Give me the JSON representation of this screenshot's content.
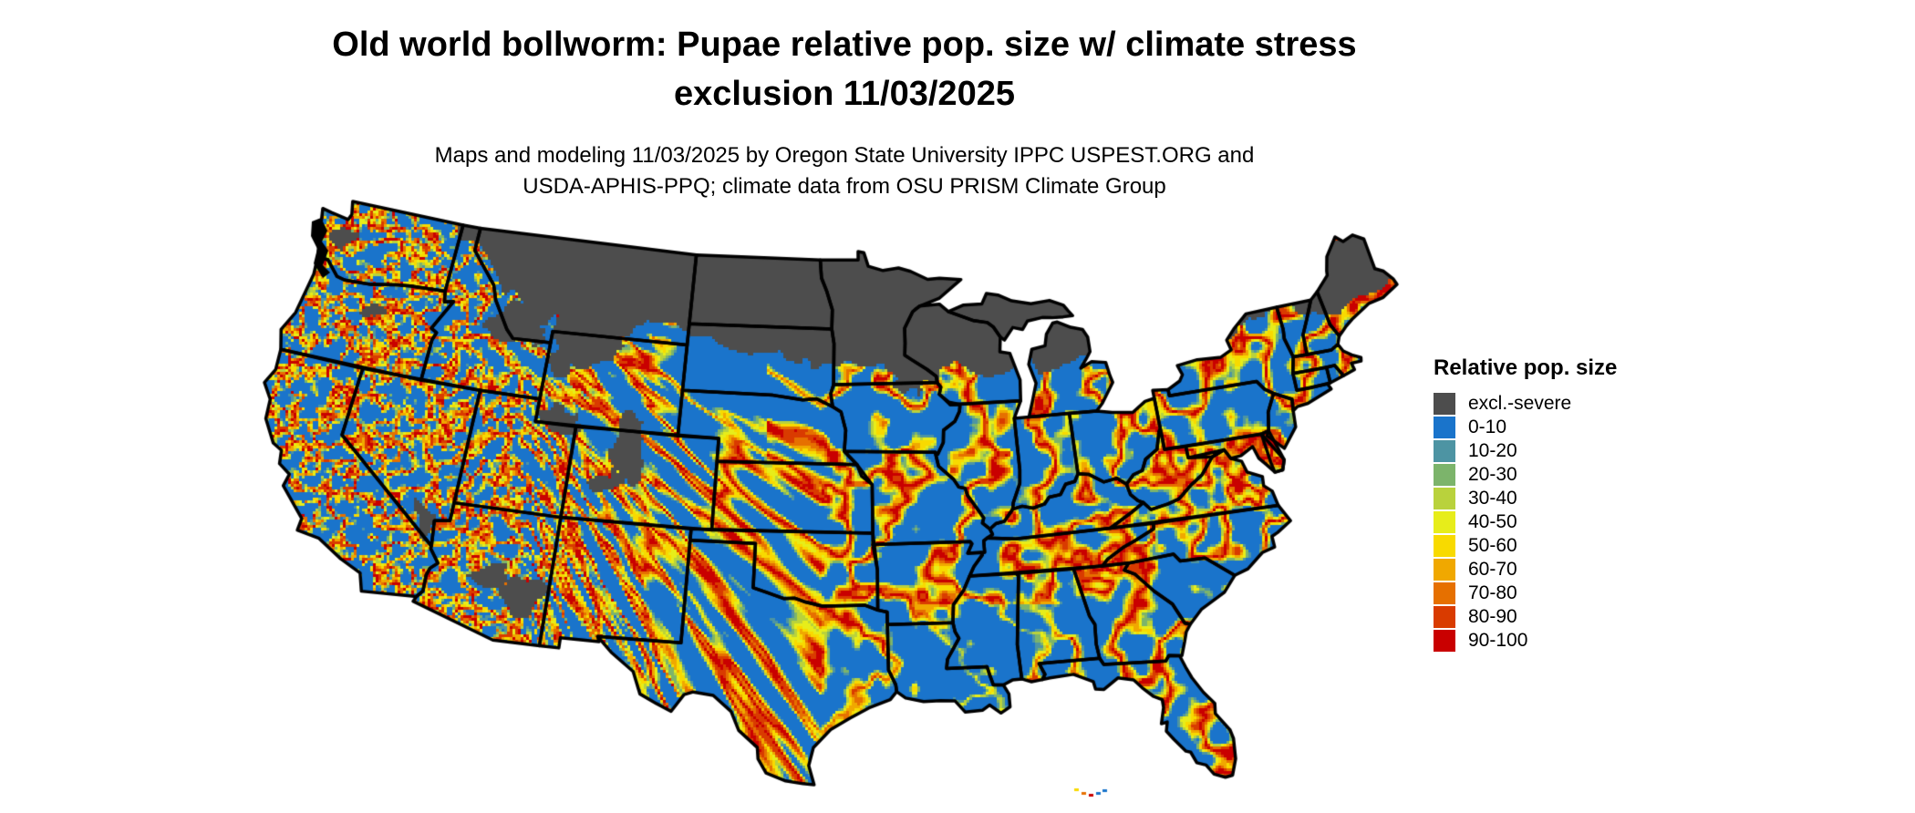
{
  "header": {
    "title_line1": "Old world bollworm: Pupae relative pop. size w/ climate stress",
    "title_line2": "exclusion 11/03/2025",
    "subtitle_line1": "Maps and modeling 11/03/2025 by Oregon State University IPPC USPEST.ORG and",
    "subtitle_line2": "USDA-APHIS-PPQ; climate data from OSU PRISM Climate Group"
  },
  "legend": {
    "title": "Relative pop. size",
    "items": [
      {
        "label": "excl.-severe",
        "color": "#4d4d4d"
      },
      {
        "label": "0-10",
        "color": "#1a74cb"
      },
      {
        "label": "10-20",
        "color": "#4d94a3"
      },
      {
        "label": "20-30",
        "color": "#7cb46b"
      },
      {
        "label": "30-40",
        "color": "#b9d23c"
      },
      {
        "label": "40-50",
        "color": "#e7ed1a"
      },
      {
        "label": "50-60",
        "color": "#f8da00"
      },
      {
        "label": "60-70",
        "color": "#f0a800"
      },
      {
        "label": "70-80",
        "color": "#e67000"
      },
      {
        "label": "80-90",
        "color": "#d93b00"
      },
      {
        "label": "90-100",
        "color": "#c90000"
      }
    ]
  },
  "map": {
    "base_color": "#1a74cb",
    "excluded_color": "#4d4d4d",
    "border_color": "#000000",
    "water_color": "#ffffff"
  }
}
